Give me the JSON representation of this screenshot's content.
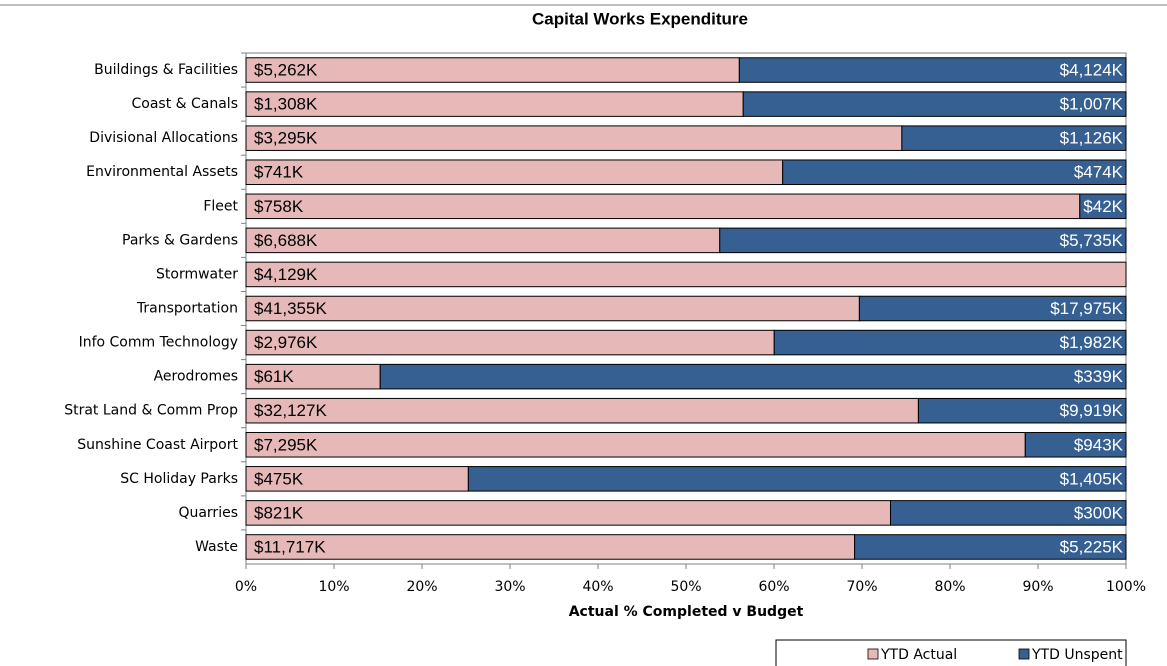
{
  "chart_data": {
    "type": "bar",
    "orientation": "horizontal",
    "stacking": "percent",
    "title": "Capital Works Expenditure",
    "x_label": "Actual % Completed v Budget",
    "categories": [
      "Buildings & Facilities",
      "Coast & Canals",
      "Divisional Allocations",
      "Environmental Assets",
      "Fleet",
      "Parks & Gardens",
      "Stormwater",
      "Transportation",
      "Info Comm Technology",
      "Aerodromes",
      "Strat Land & Comm Prop",
      "Sunshine Coast Airport",
      "SC Holiday Parks",
      "Quarries",
      "Waste"
    ],
    "series": [
      {
        "name": "YTD Actual",
        "color": "#e6b9b8",
        "values": [
          5262,
          1308,
          3295,
          741,
          758,
          6688,
          4129,
          41355,
          2976,
          61,
          32127,
          7295,
          475,
          821,
          11717
        ],
        "value_labels": [
          "$5,262K",
          "$1,308K",
          "$3,295K",
          "$741K",
          "$758K",
          "$6,688K",
          "$4,129K",
          "$41,355K",
          "$2,976K",
          "$61K",
          "$32,127K",
          "$7,295K",
          "$475K",
          "$821K",
          "$11,717K"
        ]
      },
      {
        "name": "YTD Unspent",
        "color": "#376092",
        "values": [
          4124,
          1007,
          1126,
          474,
          42,
          5735,
          null,
          17975,
          1982,
          339,
          9919,
          943,
          1405,
          300,
          5225
        ],
        "value_labels": [
          "$4,124K",
          "$1,007K",
          "$1,126K",
          "$474K",
          "$42K",
          "$5,735K",
          null,
          "$17,975K",
          "$1,982K",
          "$339K",
          "$9,919K",
          "$943K",
          "$1,405K",
          "$300K",
          "$5,225K"
        ]
      }
    ],
    "xlim": [
      0,
      100
    ],
    "xticks": [
      {
        "value": 0,
        "label": "0%"
      },
      {
        "value": 10,
        "label": "10%"
      },
      {
        "value": 20,
        "label": "20%"
      },
      {
        "value": 30,
        "label": "30%"
      },
      {
        "value": 40,
        "label": "40%"
      },
      {
        "value": 50,
        "label": "50%"
      },
      {
        "value": 60,
        "label": "60%"
      },
      {
        "value": 70,
        "label": "70%"
      },
      {
        "value": 80,
        "label": "80%"
      },
      {
        "value": 90,
        "label": "90%"
      },
      {
        "value": 100,
        "label": "100%"
      }
    ],
    "legend": "bottom-right"
  }
}
